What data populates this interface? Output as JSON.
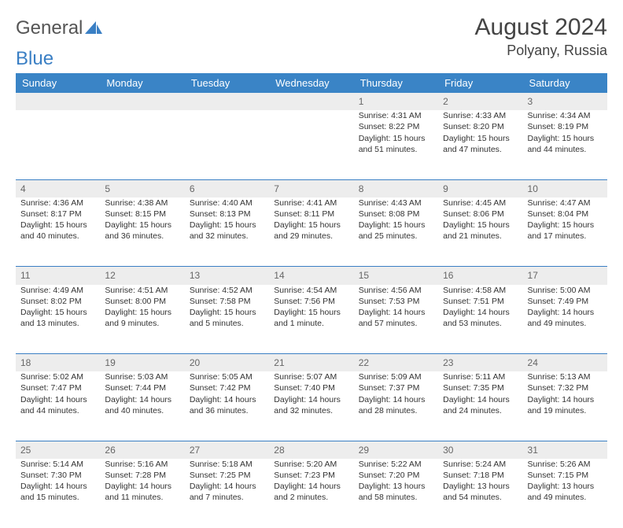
{
  "logo": {
    "text1": "General",
    "text2": "Blue"
  },
  "title": "August 2024",
  "location": "Polyany, Russia",
  "colors": {
    "header_bg": "#3a84c6",
    "header_text": "#ffffff",
    "daynum_bg": "#ededed",
    "daynum_text": "#666666",
    "row_border": "#3a7fc4",
    "body_text": "#333333"
  },
  "weekdays": [
    "Sunday",
    "Monday",
    "Tuesday",
    "Wednesday",
    "Thursday",
    "Friday",
    "Saturday"
  ],
  "layout": {
    "first_weekday_index": 4,
    "days_in_month": 31
  },
  "days": {
    "1": {
      "sunrise": "4:31 AM",
      "sunset": "8:22 PM",
      "dl_h": 15,
      "dl_m": 51
    },
    "2": {
      "sunrise": "4:33 AM",
      "sunset": "8:20 PM",
      "dl_h": 15,
      "dl_m": 47
    },
    "3": {
      "sunrise": "4:34 AM",
      "sunset": "8:19 PM",
      "dl_h": 15,
      "dl_m": 44
    },
    "4": {
      "sunrise": "4:36 AM",
      "sunset": "8:17 PM",
      "dl_h": 15,
      "dl_m": 40
    },
    "5": {
      "sunrise": "4:38 AM",
      "sunset": "8:15 PM",
      "dl_h": 15,
      "dl_m": 36
    },
    "6": {
      "sunrise": "4:40 AM",
      "sunset": "8:13 PM",
      "dl_h": 15,
      "dl_m": 32
    },
    "7": {
      "sunrise": "4:41 AM",
      "sunset": "8:11 PM",
      "dl_h": 15,
      "dl_m": 29
    },
    "8": {
      "sunrise": "4:43 AM",
      "sunset": "8:08 PM",
      "dl_h": 15,
      "dl_m": 25
    },
    "9": {
      "sunrise": "4:45 AM",
      "sunset": "8:06 PM",
      "dl_h": 15,
      "dl_m": 21
    },
    "10": {
      "sunrise": "4:47 AM",
      "sunset": "8:04 PM",
      "dl_h": 15,
      "dl_m": 17
    },
    "11": {
      "sunrise": "4:49 AM",
      "sunset": "8:02 PM",
      "dl_h": 15,
      "dl_m": 13
    },
    "12": {
      "sunrise": "4:51 AM",
      "sunset": "8:00 PM",
      "dl_h": 15,
      "dl_m": 9
    },
    "13": {
      "sunrise": "4:52 AM",
      "sunset": "7:58 PM",
      "dl_h": 15,
      "dl_m": 5
    },
    "14": {
      "sunrise": "4:54 AM",
      "sunset": "7:56 PM",
      "dl_h": 15,
      "dl_m": 1
    },
    "15": {
      "sunrise": "4:56 AM",
      "sunset": "7:53 PM",
      "dl_h": 14,
      "dl_m": 57
    },
    "16": {
      "sunrise": "4:58 AM",
      "sunset": "7:51 PM",
      "dl_h": 14,
      "dl_m": 53
    },
    "17": {
      "sunrise": "5:00 AM",
      "sunset": "7:49 PM",
      "dl_h": 14,
      "dl_m": 49
    },
    "18": {
      "sunrise": "5:02 AM",
      "sunset": "7:47 PM",
      "dl_h": 14,
      "dl_m": 44
    },
    "19": {
      "sunrise": "5:03 AM",
      "sunset": "7:44 PM",
      "dl_h": 14,
      "dl_m": 40
    },
    "20": {
      "sunrise": "5:05 AM",
      "sunset": "7:42 PM",
      "dl_h": 14,
      "dl_m": 36
    },
    "21": {
      "sunrise": "5:07 AM",
      "sunset": "7:40 PM",
      "dl_h": 14,
      "dl_m": 32
    },
    "22": {
      "sunrise": "5:09 AM",
      "sunset": "7:37 PM",
      "dl_h": 14,
      "dl_m": 28
    },
    "23": {
      "sunrise": "5:11 AM",
      "sunset": "7:35 PM",
      "dl_h": 14,
      "dl_m": 24
    },
    "24": {
      "sunrise": "5:13 AM",
      "sunset": "7:32 PM",
      "dl_h": 14,
      "dl_m": 19
    },
    "25": {
      "sunrise": "5:14 AM",
      "sunset": "7:30 PM",
      "dl_h": 14,
      "dl_m": 15
    },
    "26": {
      "sunrise": "5:16 AM",
      "sunset": "7:28 PM",
      "dl_h": 14,
      "dl_m": 11
    },
    "27": {
      "sunrise": "5:18 AM",
      "sunset": "7:25 PM",
      "dl_h": 14,
      "dl_m": 7
    },
    "28": {
      "sunrise": "5:20 AM",
      "sunset": "7:23 PM",
      "dl_h": 14,
      "dl_m": 2
    },
    "29": {
      "sunrise": "5:22 AM",
      "sunset": "7:20 PM",
      "dl_h": 13,
      "dl_m": 58
    },
    "30": {
      "sunrise": "5:24 AM",
      "sunset": "7:18 PM",
      "dl_h": 13,
      "dl_m": 54
    },
    "31": {
      "sunrise": "5:26 AM",
      "sunset": "7:15 PM",
      "dl_h": 13,
      "dl_m": 49
    }
  },
  "labels": {
    "sunrise_prefix": "Sunrise: ",
    "sunset_prefix": "Sunset: ",
    "daylight_prefix": "Daylight: ",
    "hours_word": " hours and ",
    "minutes_word_one": " minute.",
    "minutes_word": " minutes."
  }
}
